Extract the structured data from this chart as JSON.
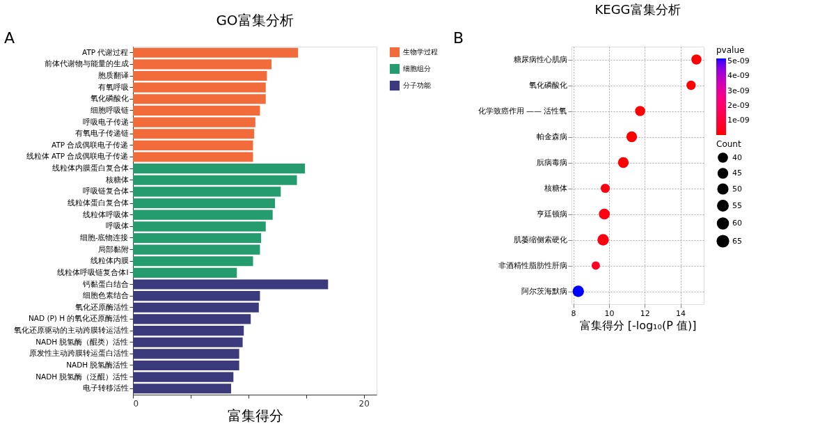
{
  "chart_data": [
    {
      "type": "bar",
      "orientation": "horizontal",
      "title": "GO富集分析",
      "xlabel": "富集得分",
      "annotations": [
        "A"
      ],
      "categories": [
        "ATP 代谢过程",
        "前体代谢物与能量的生成",
        "胞质翻译",
        "有氧呼吸",
        "氧化磷酸化",
        "细胞呼吸链",
        "呼吸电子传递",
        "有氧电子传递链",
        "ATP 合成偶联电子传递",
        "线粒体 ATP 合成偶联电子传递",
        "线粒体内膜蛋白复合体",
        "核糖体",
        "呼吸链复合体",
        "线粒体蛋白复合体",
        "线粒体呼吸体",
        "呼吸体",
        "细胞-底物连接",
        "局部黏附",
        "线粒体内膜",
        "线粒体呼吸链复合体I",
        "钙黏蛋白结合",
        "细胞色素结合",
        "氧化还原酶活性",
        "NAD (P) H 的氧化还原酶活性",
        "氧化还原驱动的主动跨膜转运活性",
        "NADH 脱氢酶（醌类）活性",
        "原发性主动跨膜转运蛋白活性",
        "NADH 脱氢酶活性",
        "NADH 脱氢酶（泛醌）活性",
        "电子转移活性"
      ],
      "series": [
        {
          "name": "生物学过程",
          "color": "#f26b3a",
          "values": [
            14.3,
            12.0,
            11.6,
            11.5,
            11.5,
            11.0,
            10.6,
            10.5,
            10.4,
            10.4,
            null,
            null,
            null,
            null,
            null,
            null,
            null,
            null,
            null,
            null,
            null,
            null,
            null,
            null,
            null,
            null,
            null,
            null,
            null,
            null
          ]
        },
        {
          "name": "细胞组分",
          "color": "#259c6e",
          "values": [
            null,
            null,
            null,
            null,
            null,
            null,
            null,
            null,
            null,
            null,
            14.9,
            14.2,
            12.8,
            12.3,
            12.1,
            11.5,
            11.1,
            11.0,
            10.4,
            9.0,
            null,
            null,
            null,
            null,
            null,
            null,
            null,
            null,
            null,
            null
          ]
        },
        {
          "name": "分子功能",
          "color": "#3a3a7c",
          "values": [
            null,
            null,
            null,
            null,
            null,
            null,
            null,
            null,
            null,
            null,
            null,
            null,
            null,
            null,
            null,
            null,
            null,
            null,
            null,
            null,
            16.9,
            11.0,
            10.9,
            10.2,
            9.6,
            9.5,
            9.2,
            9.2,
            8.7,
            8.5
          ]
        }
      ],
      "xlim": [
        0,
        21.1
      ],
      "xticks": [
        0,
        {
          "value": 5,
          "label": null
        },
        {
          "value": 10,
          "label": null
        },
        {
          "value": 15,
          "label": null
        },
        20
      ],
      "legend": "top right"
    },
    {
      "type": "bubble",
      "orientation": "horizontal",
      "title": "KEGG富集分析",
      "xlabel": "富集得分 [-log₁₀(P 值)]",
      "annotations": [
        "B"
      ],
      "categories": [
        "糖尿病性心肌病",
        "氧化磷酸化",
        "化学致癌作用 —— 活性氧",
        "帕金森病",
        "朊病毒病",
        "核糖体",
        "亨廷顿病",
        "肌萎缩侧索硬化",
        "非酒精性脂肪性肝病",
        "阿尔茨海默病"
      ],
      "values": [
        14.89,
        14.59,
        11.74,
        11.27,
        10.8,
        9.79,
        9.74,
        9.67,
        9.26,
        8.28
      ],
      "sizes": [
        49,
        41,
        49,
        55,
        55,
        40,
        57,
        62,
        33,
        62
      ],
      "size_legend": [
        40,
        45,
        50,
        55,
        60,
        65
      ],
      "legend_title": "Count",
      "cvalues": [
        0,
        0,
        0,
        0,
        0,
        2e-10,
        2e-10,
        2e-10,
        5e-10,
        5.2e-09
      ],
      "clabel": "pvalue",
      "clim": [
        0,
        5.2e-09
      ],
      "cticks": [
        {
          "value": 1e-09,
          "label": "1e-09"
        },
        {
          "value": 2e-09,
          "label": "2e-09"
        },
        {
          "value": 3e-09,
          "label": "3e-09"
        },
        {
          "value": 4e-09,
          "label": "4e-09"
        },
        {
          "value": 5e-09,
          "label": "5e-09"
        }
      ],
      "xlim": [
        7.9,
        15.3
      ],
      "xticks": [
        8,
        10,
        12,
        14
      ],
      "grid": true
    }
  ]
}
